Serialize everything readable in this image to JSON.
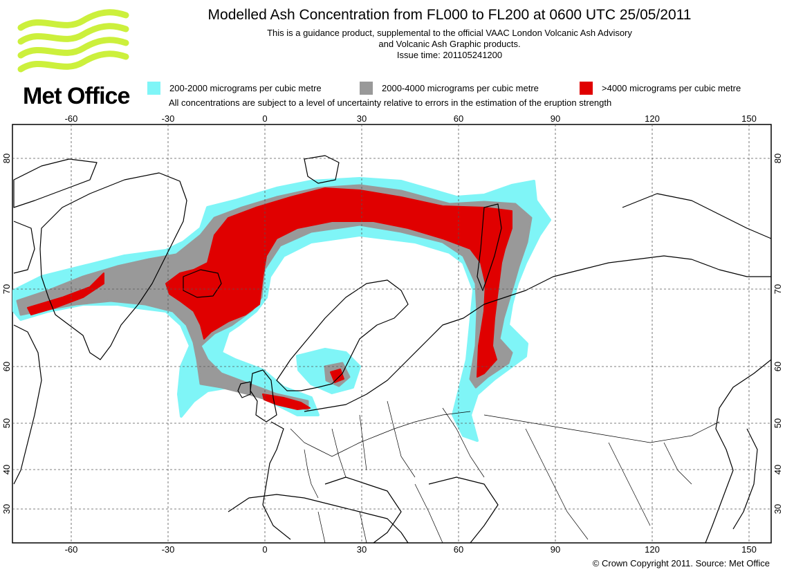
{
  "header": {
    "title": "Modelled Ash Concentration from FL000 to FL200 at 0600 UTC 25/05/2011",
    "subtitle_line1": "This is a guidance product, supplemental to the official VAAC London Volcanic Ash Advisory",
    "subtitle_line2": "and Volcanic Ash Graphic products.",
    "issue_time": "Issue time: 201105241200"
  },
  "logo": {
    "text": "Met Office",
    "icon": "met-office-waves-icon",
    "color": "#ccf03c"
  },
  "legend": {
    "items": [
      {
        "label": "200-2000 micrograms per cubic metre",
        "color": "#7ff5f7"
      },
      {
        "label": "2000-4000 micrograms per cubic metre",
        "color": "#999999"
      },
      {
        "label": ">4000 micrograms per cubic metre",
        "color": "#e00000"
      }
    ],
    "note": "All concentrations are subject to a level of uncertainty relative to errors in the estimation of the eruption strength"
  },
  "map": {
    "lon_ticks": [
      "-60",
      "-30",
      "0",
      "30",
      "60",
      "90",
      "120",
      "150"
    ],
    "lat_ticks": [
      "80",
      "70",
      "60",
      "50",
      "40",
      "30"
    ],
    "grid": true,
    "gridline_style": "dashed"
  },
  "footer": {
    "copyright": "© Crown Copyright 2011. Source: Met Office"
  }
}
